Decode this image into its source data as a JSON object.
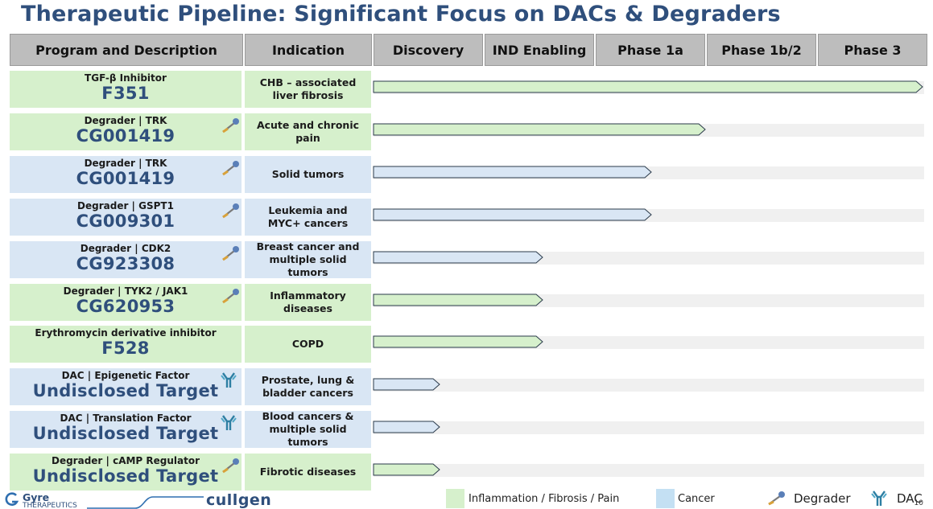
{
  "title": "Therapeutic Pipeline: Significant Focus on DACs & Degraders",
  "headers": [
    "Program and Description",
    "Indication",
    "Discovery",
    "IND Enabling",
    "Phase 1a",
    "Phase 1b/2",
    "Phase 3"
  ],
  "colors": {
    "green": "#d6f0cc",
    "blue": "#d9e6f4",
    "title": "#2f4f7c",
    "header": "#bdbdbd",
    "track": "#f0f0f0"
  },
  "rows": [
    {
      "subtitle": "TGF-β Inhibitor",
      "code": "F351",
      "indication": "CHB – associated\nliver fibrosis",
      "area": "green",
      "icon": "none",
      "progress": 1.0
    },
    {
      "subtitle": "Degrader |  TRK",
      "code": "CG001419",
      "indication": "Acute and chronic\npain",
      "area": "green",
      "icon": "degrader-icon",
      "progress": 0.6
    },
    {
      "subtitle": "Degrader |  TRK",
      "code": "CG001419",
      "indication": "Solid tumors",
      "area": "blue",
      "icon": "degrader-icon",
      "progress": 0.5
    },
    {
      "subtitle": "Degrader |  GSPT1",
      "code": "CG009301",
      "indication": "Leukemia and\nMYC+ cancers",
      "area": "blue",
      "icon": "degrader-icon",
      "progress": 0.5
    },
    {
      "subtitle": "Degrader |  CDK2",
      "code": "CG923308",
      "indication": "Breast cancer and\nmultiple solid\ntumors",
      "area": "blue",
      "icon": "degrader-icon",
      "progress": 0.3
    },
    {
      "subtitle": "Degrader |  TYK2 / JAK1",
      "code": "CG620953",
      "indication": "Inflammatory\ndiseases",
      "area": "green",
      "icon": "degrader-icon",
      "progress": 0.3
    },
    {
      "subtitle": "Erythromycin derivative inhibitor",
      "code": "F528",
      "indication": "COPD",
      "area": "green",
      "icon": "none",
      "progress": 0.3
    },
    {
      "subtitle": "DAC |  Epigenetic Factor",
      "code": "Undisclosed Target",
      "indication": "Prostate, lung &\nbladder cancers",
      "area": "blue",
      "icon": "dac-icon",
      "progress": 0.11
    },
    {
      "subtitle": "DAC |  Translation Factor",
      "code": "Undisclosed Target",
      "indication": "Blood cancers &\nmultiple solid\ntumors",
      "area": "blue",
      "icon": "dac-icon",
      "progress": 0.11
    },
    {
      "subtitle": "Degrader |  cAMP Regulator",
      "code": "Undisclosed Target",
      "indication": "Fibrotic diseases",
      "area": "green",
      "icon": "degrader-icon",
      "progress": 0.11
    }
  ],
  "legend": {
    "inflammation": "Inflammation / Fibrosis / Pain",
    "cancer": "Cancer",
    "degrader": "Degrader",
    "dac": "DAC"
  },
  "footer": {
    "gyre": "Gyre",
    "gyre_sub": "THERAPEUTICS",
    "cullgen": "cullgen",
    "page": "10"
  }
}
